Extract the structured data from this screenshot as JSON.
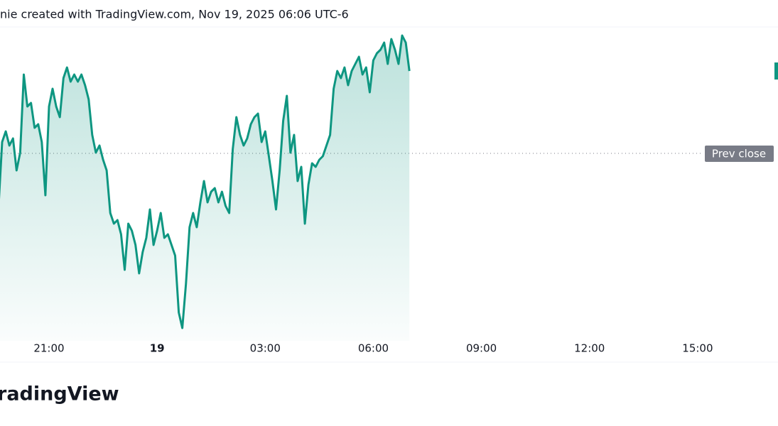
{
  "chart_data": {
    "type": "area",
    "title": "nie created with TradingView.com, Nov 19, 2025 06:06 UTC-6",
    "color": "#0e9681",
    "x": [
      -4.4,
      -4.3,
      -4.2,
      -4.1,
      -4.0,
      -3.9,
      -3.8,
      -3.7,
      -3.6,
      -3.5,
      -3.4,
      -3.3,
      -3.2,
      -3.1,
      -3.0,
      -2.9,
      -2.8,
      -2.7,
      -2.6,
      -2.5,
      -2.4,
      -2.3,
      -2.2,
      -2.1,
      -2.0,
      -1.9,
      -1.8,
      -1.7,
      -1.6,
      -1.5,
      -1.4,
      -1.3,
      -1.2,
      -1.1,
      -1.0,
      -0.9,
      -0.8,
      -0.7,
      -0.6,
      -0.5,
      -0.4,
      -0.3,
      -0.2,
      -0.1,
      0.0,
      0.1,
      0.2,
      0.3,
      0.4,
      0.5,
      0.6,
      0.7,
      0.8,
      0.9,
      1.0,
      1.1,
      1.2,
      1.3,
      1.4,
      1.5,
      1.6,
      1.7,
      1.8,
      1.9,
      2.0,
      2.1,
      2.2,
      2.3,
      2.4,
      2.5,
      2.6,
      2.7,
      2.8,
      2.9,
      3.0,
      3.1,
      3.2,
      3.3,
      3.4,
      3.5,
      3.6,
      3.7,
      3.8,
      3.9,
      4.0,
      4.1,
      4.2,
      4.3,
      4.4,
      4.5,
      4.6,
      4.7,
      4.8,
      4.9,
      5.0,
      5.1,
      5.2,
      5.3,
      5.4,
      5.5,
      5.6,
      5.7,
      5.8,
      5.9,
      6.0,
      6.1,
      6.2,
      6.3,
      6.4,
      6.5,
      6.6,
      6.7,
      6.8,
      6.9,
      7.0
    ],
    "values": [
      190,
      280,
      295,
      275,
      285,
      240,
      265,
      375,
      330,
      335,
      300,
      305,
      280,
      205,
      330,
      355,
      330,
      315,
      370,
      385,
      365,
      375,
      365,
      375,
      360,
      340,
      290,
      265,
      275,
      255,
      240,
      180,
      165,
      170,
      150,
      100,
      165,
      155,
      135,
      95,
      125,
      145,
      185,
      135,
      155,
      180,
      145,
      150,
      135,
      120,
      40,
      18,
      80,
      160,
      180,
      160,
      195,
      225,
      195,
      210,
      215,
      195,
      210,
      190,
      180,
      270,
      315,
      290,
      275,
      285,
      305,
      315,
      320,
      280,
      295,
      260,
      225,
      185,
      240,
      310,
      345,
      265,
      290,
      225,
      245,
      165,
      220,
      250,
      245,
      255,
      260,
      275,
      290,
      355,
      380,
      370,
      385,
      360,
      380,
      390,
      400,
      375,
      385,
      350,
      395,
      405,
      410,
      420,
      390,
      425,
      410,
      390,
      430,
      420,
      380
    ],
    "xlim": [
      -4.36,
      17.23
    ],
    "ylim": [
      0,
      440
    ],
    "xticks": [
      {
        "value": -3,
        "label": "21:00"
      },
      {
        "value": 0,
        "label": "19"
      },
      {
        "value": 3,
        "label": "03:00"
      },
      {
        "value": 6,
        "label": "06:00"
      },
      {
        "value": 9,
        "label": "09:00"
      },
      {
        "value": 12,
        "label": "12:00"
      },
      {
        "value": 15,
        "label": "15:00"
      }
    ],
    "prev_close": {
      "label": "Prev close",
      "value": 264
    }
  },
  "footer": {
    "logo": "radingView"
  }
}
